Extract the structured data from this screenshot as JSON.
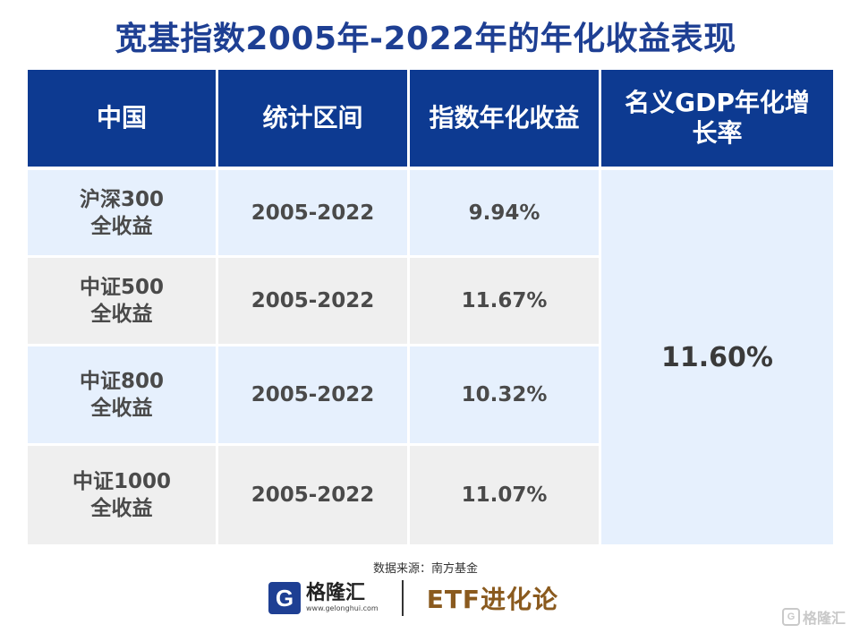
{
  "title": "宽基指数2005年-2022年的年化收益表现",
  "chart_data": {
    "type": "table",
    "columns": [
      "中国",
      "统计区间",
      "指数年化收益",
      "名义GDP年化增\n长率"
    ],
    "rows": [
      {
        "name": "沪深300\n全收益",
        "period": "2005-2022",
        "return": "9.94%"
      },
      {
        "name": "中证500\n全收益",
        "period": "2005-2022",
        "return": "11.67%"
      },
      {
        "name": "中证800\n全收益",
        "period": "2005-2022",
        "return": "10.32%"
      },
      {
        "name": "中证1000\n全收益",
        "period": "2005-2022",
        "return": "11.07%"
      }
    ],
    "gdp_growth": "11.60%"
  },
  "source": "数据来源：南方基金",
  "footer": {
    "logo_letter": "G",
    "logo_name": "格隆汇",
    "logo_url": "www.gelonghui.com",
    "brand": "ETF进化论"
  },
  "watermark": {
    "letter": "G",
    "text": "格隆汇"
  },
  "colors": {
    "header_bg": "#0d3a91",
    "title": "#1e3f93",
    "row_blue": "#e6f0fd",
    "row_gray": "#efefef",
    "brand": "#8a5a1e"
  }
}
